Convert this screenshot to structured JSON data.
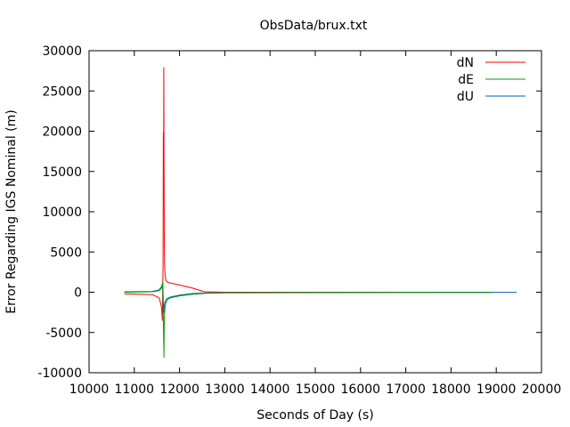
{
  "chart_data": {
    "type": "line",
    "title": "ObsData/brux.txt",
    "xlabel": "Seconds of Day (s)",
    "ylabel": "Error Regarding IGS Nominal (m)",
    "xlim": [
      10000,
      20000
    ],
    "ylim": [
      -10000,
      30000
    ],
    "xticks": [
      10000,
      11000,
      12000,
      13000,
      14000,
      15000,
      16000,
      17000,
      18000,
      19000,
      20000
    ],
    "yticks": [
      -10000,
      -5000,
      0,
      5000,
      10000,
      15000,
      20000,
      25000,
      30000
    ],
    "grid": false,
    "legend_position": "top-right",
    "series": [
      {
        "name": "dN",
        "color": "#ff0000",
        "x": [
          10780,
          11400,
          11550,
          11600,
          11620,
          11635,
          11642,
          11648,
          11652,
          11658,
          11664,
          11670,
          11680,
          11700,
          11750,
          12000,
          12300,
          12550,
          13000,
          15000,
          17000,
          18900
        ],
        "y": [
          -200,
          -300,
          -700,
          -1800,
          -3500,
          3500,
          19800,
          14500,
          27900,
          15500,
          6000,
          3500,
          2200,
          1400,
          1200,
          900,
          500,
          50,
          0,
          0,
          0,
          0
        ]
      },
      {
        "name": "dE",
        "color": "#00a000",
        "x": [
          10780,
          11400,
          11550,
          11600,
          11625,
          11640,
          11648,
          11655,
          11662,
          11670,
          11690,
          11730,
          11800,
          12000,
          12300,
          12600,
          13000,
          15000,
          17000,
          18900
        ],
        "y": [
          0,
          50,
          200,
          500,
          1200,
          -3000,
          -5500,
          -8100,
          -4000,
          -2500,
          -1400,
          -900,
          -700,
          -450,
          -250,
          -120,
          -80,
          -50,
          -30,
          -20
        ]
      },
      {
        "name": "dU",
        "color": "#0060c0",
        "x": [
          10780,
          11400,
          11550,
          11600,
          11625,
          11640,
          11650,
          11660,
          11680,
          11720,
          11800,
          12000,
          12300,
          12600,
          13000,
          15000,
          17000,
          19000,
          19450
        ],
        "y": [
          50,
          100,
          300,
          700,
          1100,
          -600,
          -2600,
          -1800,
          -1200,
          -800,
          -600,
          -350,
          -150,
          -80,
          -50,
          -30,
          -20,
          -10,
          -10
        ]
      }
    ]
  }
}
